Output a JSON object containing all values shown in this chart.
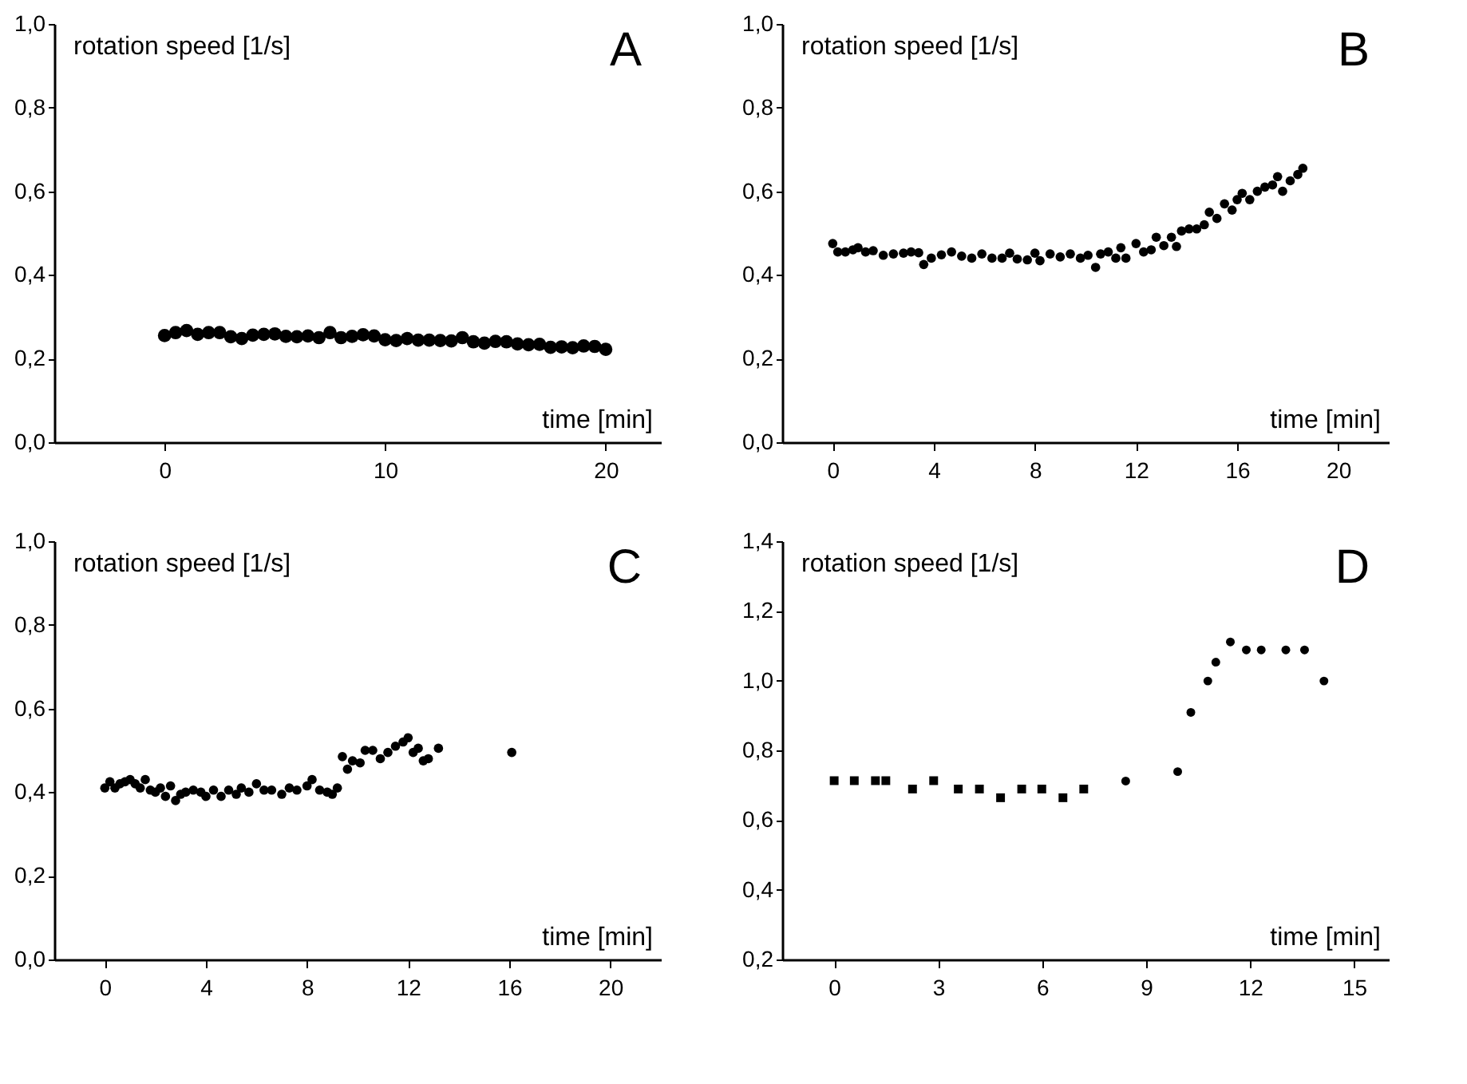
{
  "chart_data": [
    {
      "type": "scatter",
      "title": "A",
      "xlabel": "time [min]",
      "ylabel": "rotation speed [1/s]",
      "xlim": [
        -5,
        22.5
      ],
      "xticks": [
        0,
        10,
        20
      ],
      "ylim": [
        0,
        1
      ],
      "yticks": [
        {
          "value": 0,
          "label": "0,0"
        },
        {
          "value": 0.2,
          "label": "0,2"
        },
        {
          "value": 0.4,
          "label": "0,4"
        },
        {
          "value": 0.6,
          "label": "0,6"
        },
        {
          "value": 0.8,
          "label": "0,8"
        },
        {
          "value": 1,
          "label": "1,0"
        }
      ],
      "grid": false,
      "series": [
        {
          "color": "#000000",
          "marker": "circle",
          "x": [
            0,
            0.5,
            1,
            1.5,
            2,
            2.5,
            3,
            3.5,
            4,
            4.5,
            5,
            5.5,
            6,
            6.5,
            7,
            7.5,
            8,
            8.5,
            9,
            9.5,
            10,
            10.5,
            11,
            11.5,
            12,
            12.5,
            13,
            13.5,
            14,
            14.5,
            15,
            15.5,
            16,
            16.5,
            17,
            17.5,
            18,
            18.5,
            19,
            19.5,
            20
          ],
          "values": [
            0.255,
            0.262,
            0.267,
            0.258,
            0.262,
            0.262,
            0.252,
            0.248,
            0.256,
            0.258,
            0.259,
            0.253,
            0.252,
            0.254,
            0.25,
            0.262,
            0.25,
            0.253,
            0.257,
            0.254,
            0.245,
            0.243,
            0.248,
            0.244,
            0.244,
            0.243,
            0.242,
            0.25,
            0.24,
            0.237,
            0.241,
            0.24,
            0.235,
            0.233,
            0.234,
            0.227,
            0.228,
            0.226,
            0.23,
            0.229,
            0.222
          ]
        }
      ]
    },
    {
      "type": "scatter",
      "title": "B",
      "xlabel": "time [min]",
      "ylabel": "rotation speed [1/s]",
      "xlim": [
        -2,
        22
      ],
      "xticks": [
        0,
        4,
        8,
        12,
        16,
        20
      ],
      "ylim": [
        0,
        1
      ],
      "yticks": [
        {
          "value": 0,
          "label": "0,0"
        },
        {
          "value": 0.2,
          "label": "0,2"
        },
        {
          "value": 0.4,
          "label": "0,4"
        },
        {
          "value": 0.6,
          "label": "0,6"
        },
        {
          "value": 0.8,
          "label": "0,8"
        },
        {
          "value": 1,
          "label": "1,0"
        }
      ],
      "grid": false,
      "series": [
        {
          "color": "#000000",
          "marker": "circle",
          "x": [
            0,
            0.2,
            0.5,
            0.8,
            1,
            1.3,
            1.6,
            2,
            2.4,
            2.8,
            3.1,
            3.4,
            3.6,
            3.9,
            4.3,
            4.7,
            5.1,
            5.5,
            5.9,
            6.3,
            6.7,
            7,
            7.3,
            7.7,
            8,
            8.2,
            8.6,
            9,
            9.4,
            9.8,
            10.1,
            10.4,
            10.6,
            10.9,
            11.2,
            11.4,
            11.6,
            12,
            12.3,
            12.6,
            12.8,
            13.1,
            13.4,
            13.6,
            13.8,
            14.1,
            14.4,
            14.7,
            14.9,
            15.2,
            15.5,
            15.8,
            16,
            16.2,
            16.5,
            16.8,
            17.1,
            17.4,
            17.6,
            17.8,
            18.1,
            18.4,
            18.6
          ],
          "values": [
            0.475,
            0.455,
            0.455,
            0.46,
            0.465,
            0.455,
            0.458,
            0.447,
            0.45,
            0.452,
            0.455,
            0.453,
            0.425,
            0.44,
            0.448,
            0.455,
            0.445,
            0.44,
            0.45,
            0.44,
            0.44,
            0.452,
            0.438,
            0.436,
            0.452,
            0.434,
            0.45,
            0.443,
            0.45,
            0.44,
            0.447,
            0.418,
            0.45,
            0.455,
            0.44,
            0.465,
            0.44,
            0.475,
            0.455,
            0.46,
            0.49,
            0.47,
            0.49,
            0.468,
            0.505,
            0.51,
            0.51,
            0.52,
            0.55,
            0.535,
            0.57,
            0.555,
            0.58,
            0.595,
            0.58,
            0.6,
            0.61,
            0.615,
            0.635,
            0.6,
            0.625,
            0.64,
            0.655
          ]
        }
      ]
    },
    {
      "type": "scatter",
      "title": "C",
      "xlabel": "time [min]",
      "ylabel": "rotation speed [1/s]",
      "xlim": [
        -2,
        22
      ],
      "xticks": [
        0,
        4,
        8,
        12,
        16,
        20
      ],
      "ylim": [
        0,
        1
      ],
      "yticks": [
        {
          "value": 0,
          "label": "0,0"
        },
        {
          "value": 0.2,
          "label": "0,2"
        },
        {
          "value": 0.4,
          "label": "0,4"
        },
        {
          "value": 0.6,
          "label": "0,6"
        },
        {
          "value": 0.8,
          "label": "0,8"
        },
        {
          "value": 1,
          "label": "1,0"
        }
      ],
      "grid": false,
      "series": [
        {
          "color": "#000000",
          "marker": "circle",
          "x": [
            0,
            0.2,
            0.4,
            0.6,
            0.8,
            1,
            1.2,
            1.4,
            1.6,
            1.8,
            2,
            2.2,
            2.4,
            2.6,
            2.8,
            3,
            3.2,
            3.5,
            3.8,
            4,
            4.3,
            4.6,
            4.9,
            5.2,
            5.4,
            5.7,
            6,
            6.3,
            6.6,
            7,
            7.3,
            7.6,
            8,
            8.2,
            8.5,
            8.8,
            9,
            9.2,
            9.4,
            9.6,
            9.8,
            10.1,
            10.3,
            10.6,
            10.9,
            11.2,
            11.5,
            11.8,
            12,
            12.2,
            12.4,
            12.6,
            12.8,
            13.2,
            16.1
          ],
          "values": [
            0.41,
            0.425,
            0.41,
            0.42,
            0.425,
            0.43,
            0.42,
            0.41,
            0.43,
            0.405,
            0.4,
            0.41,
            0.39,
            0.415,
            0.38,
            0.395,
            0.4,
            0.405,
            0.4,
            0.39,
            0.405,
            0.39,
            0.405,
            0.395,
            0.41,
            0.4,
            0.42,
            0.405,
            0.405,
            0.395,
            0.41,
            0.405,
            0.415,
            0.43,
            0.405,
            0.4,
            0.395,
            0.41,
            0.485,
            0.455,
            0.475,
            0.47,
            0.5,
            0.5,
            0.48,
            0.495,
            0.51,
            0.52,
            0.53,
            0.495,
            0.505,
            0.475,
            0.48,
            0.505,
            0.495
          ]
        }
      ]
    },
    {
      "type": "scatter",
      "title": "D",
      "xlabel": "time [min]",
      "ylabel": "rotation speed [1/s]",
      "xlim": [
        -1.5,
        16
      ],
      "xticks": [
        0,
        3,
        6,
        9,
        12,
        15
      ],
      "ylim": [
        0.2,
        1.4
      ],
      "yticks": [
        {
          "value": 0.2,
          "label": "0,2"
        },
        {
          "value": 0.4,
          "label": "0,4"
        },
        {
          "value": 0.6,
          "label": "0,6"
        },
        {
          "value": 0.8,
          "label": "0,8"
        },
        {
          "value": 1,
          "label": "1,0"
        },
        {
          "value": 1.2,
          "label": "1,2"
        },
        {
          "value": 1.4,
          "label": "1,4"
        }
      ],
      "grid": false,
      "series": [
        {
          "color": "#000000",
          "marker": "square",
          "x": [
            0,
            0.58,
            1.19,
            1.49,
            2.26,
            2.87,
            3.58,
            4.19,
            4.8,
            5.41,
            5.99,
            6.6,
            7.2
          ],
          "values": [
            0.713,
            0.713,
            0.713,
            0.713,
            0.689,
            0.713,
            0.689,
            0.689,
            0.664,
            0.689,
            0.689,
            0.664,
            0.689
          ]
        },
        {
          "color": "#000000",
          "marker": "circle",
          "x": [
            8.41,
            9.91,
            10.29,
            10.78,
            11.01,
            11.43,
            11.89,
            12.32,
            13.03,
            13.57,
            14.13
          ],
          "values": [
            0.712,
            0.739,
            0.909,
            0.999,
            1.053,
            1.111,
            1.088,
            1.088,
            1.088,
            1.088,
            0.999
          ]
        }
      ]
    }
  ]
}
